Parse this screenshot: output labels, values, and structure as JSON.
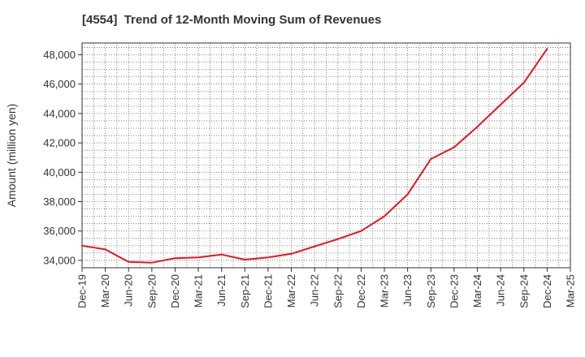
{
  "chart_data": {
    "type": "line",
    "title": "[4554]  Trend of 12-Month Moving Sum of Revenues",
    "ylabel": "Amount (million yen)",
    "xlabel": "",
    "ylim": [
      33500,
      48800
    ],
    "yticks": [
      34000,
      36000,
      38000,
      40000,
      42000,
      44000,
      46000,
      48000
    ],
    "ytick_labels": [
      "34,000",
      "36,000",
      "38,000",
      "40,000",
      "42,000",
      "44,000",
      "46,000",
      "48,000"
    ],
    "categories": [
      "Dec-19",
      "Mar-20",
      "Jun-20",
      "Sep-20",
      "Dec-20",
      "Mar-21",
      "Jun-21",
      "Sep-21",
      "Dec-21",
      "Mar-22",
      "Jun-22",
      "Sep-22",
      "Dec-22",
      "Mar-23",
      "Jun-23",
      "Sep-23",
      "Dec-23",
      "Mar-24",
      "Jun-24",
      "Sep-24",
      "Dec-24",
      "Mar-25"
    ],
    "series": [
      {
        "color": "#e8141b",
        "values": [
          35000,
          34750,
          33900,
          33850,
          34150,
          34200,
          34400,
          34050,
          34200,
          34450,
          34950,
          35450,
          36000,
          37000,
          38500,
          40900,
          41700,
          43100,
          44600,
          46100,
          48400,
          null
        ]
      }
    ],
    "grid": true,
    "legend": "none"
  }
}
